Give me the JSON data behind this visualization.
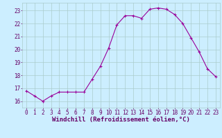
{
  "x": [
    0,
    1,
    2,
    3,
    4,
    5,
    6,
    7,
    8,
    9,
    10,
    11,
    12,
    13,
    14,
    15,
    16,
    17,
    18,
    19,
    20,
    21,
    22,
    23
  ],
  "y": [
    16.8,
    16.4,
    16.0,
    16.4,
    16.7,
    16.7,
    16.7,
    16.7,
    17.7,
    18.7,
    20.1,
    21.9,
    22.6,
    22.6,
    22.4,
    23.1,
    23.2,
    23.1,
    22.7,
    22.0,
    20.9,
    19.8,
    18.5,
    17.9
  ],
  "line_color": "#990099",
  "marker": "+",
  "markersize": 3,
  "linewidth": 0.8,
  "bg_color": "#cceeff",
  "grid_color": "#aacccc",
  "xlabel": "Windchill (Refroidissement éolien,°C)",
  "xlabel_color": "#660066",
  "xlabel_fontsize": 6.5,
  "ylabel_ticks": [
    16,
    17,
    18,
    19,
    20,
    21,
    22,
    23
  ],
  "xlim": [
    -0.5,
    23.5
  ],
  "ylim": [
    15.5,
    23.6
  ],
  "tick_fontsize": 5.5,
  "tick_color": "#660066",
  "markeredgewidth": 0.8
}
